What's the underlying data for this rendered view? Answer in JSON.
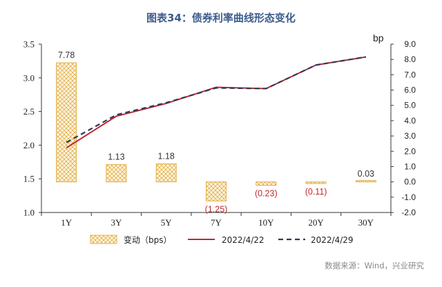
{
  "title": "图表34：债券利率曲线形态变化",
  "source": "数据来源：Wind，兴业研究",
  "colors": {
    "bar_stroke": "#e3b04b",
    "bar_fill": "#fdf4dc",
    "line1": "#c0272d",
    "line2": "#2a3a5a",
    "label_pos": "#333333",
    "label_neg": "#c0272d",
    "axis": "#333333",
    "title": "#3b5b8c"
  },
  "chart_data": {
    "type": "bar+line",
    "categories": [
      "1Y",
      "3Y",
      "5Y",
      "7Y",
      "10Y",
      "20Y",
      "30Y"
    ],
    "y_left": {
      "min": 1.0,
      "max": 3.5,
      "step": 0.5,
      "ticks": [
        "1.0",
        "1.5",
        "2.0",
        "2.5",
        "3.0",
        "3.5"
      ]
    },
    "y_right": {
      "label": "bp",
      "min": -2.0,
      "max": 9.0,
      "step": 1.0,
      "ticks": [
        "-2.0",
        "-1.0",
        "0.0",
        "1.0",
        "2.0",
        "3.0",
        "4.0",
        "5.0",
        "6.0",
        "7.0",
        "8.0",
        "9.0"
      ]
    },
    "bars": {
      "name": "变动（bps）",
      "axis": "right",
      "values": [
        7.78,
        1.13,
        1.18,
        -1.25,
        -0.23,
        -0.11,
        0.03
      ],
      "labels": [
        "7.78",
        "1.13",
        "1.18",
        "(1.25)",
        "(0.23)",
        "(0.11)",
        "0.03"
      ]
    },
    "series": [
      {
        "name": "2022/4/22",
        "axis": "left",
        "style": "solid",
        "values": [
          1.96,
          2.43,
          2.62,
          2.86,
          2.84,
          3.19,
          3.31
        ]
      },
      {
        "name": "2022/4/29",
        "axis": "left",
        "style": "dashed",
        "values": [
          2.04,
          2.45,
          2.63,
          2.85,
          2.84,
          3.19,
          3.31
        ]
      }
    ],
    "legend_position": "bottom",
    "grid": false
  }
}
